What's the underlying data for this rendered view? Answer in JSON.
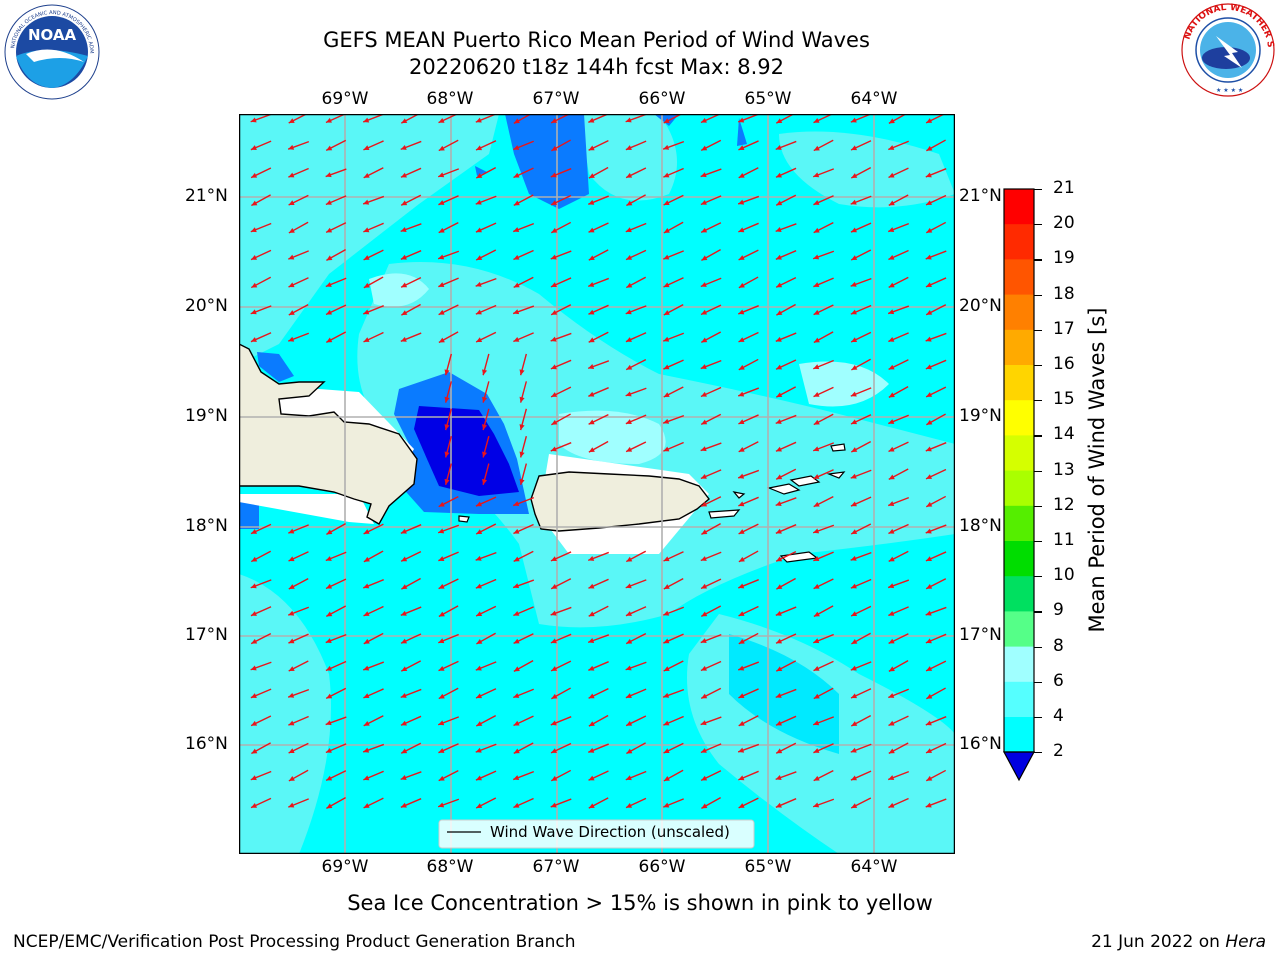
{
  "header": {
    "title_line1": "GEFS MEAN Puerto Rico Mean Period of Wind Waves",
    "title_line2": "20220620 t18z 144h fcst   Max: 8.92"
  },
  "logos": {
    "left": "noara-logo",
    "right": "nws-logo",
    "noaa_text": "NOAA",
    "noaa_ring_text": "NATIONAL OCEANIC AND ATMOSPHERIC ADMINISTRATION · U.S. DEPARTMENT OF COMMERCE",
    "nws_ring_text": "NATIONAL WEATHER SERVICE"
  },
  "map": {
    "lon_labels": [
      "69°W",
      "68°W",
      "67°W",
      "66°W",
      "65°W",
      "64°W"
    ],
    "lat_labels": [
      "21°N",
      "20°N",
      "19°N",
      "18°N",
      "17°N",
      "16°N"
    ],
    "legend_label": "Wind Wave Direction (unscaled)",
    "arrow_color": "#e8151b",
    "land_color": "#efeedd",
    "ocean_base_color": "#00ffff"
  },
  "colorbar": {
    "label": "Mean Period of Wind Waves [s]",
    "ticks": [
      "21",
      "20",
      "19",
      "18",
      "17",
      "16",
      "15",
      "14",
      "13",
      "12",
      "11",
      "10",
      "9",
      "8",
      "6",
      "4",
      "2"
    ],
    "colors": [
      "#ff0000",
      "#ff2a00",
      "#ff5500",
      "#ff8000",
      "#ffaa00",
      "#ffd500",
      "#ffff00",
      "#d5ff00",
      "#aaff00",
      "#55ee00",
      "#00dd00",
      "#00e060",
      "#55ff88",
      "#a0ffff",
      "#55ffff",
      "#00ffff",
      "#0080ff"
    ],
    "under_color": "#0000e0"
  },
  "caption": "Sea Ice Concentration > 15% is shown in pink to yellow",
  "footer": {
    "left": "NCEP/EMC/Verification Post Processing Product Generation Branch",
    "right_date": "21 Jun 2022 on ",
    "right_host": "Hera"
  }
}
